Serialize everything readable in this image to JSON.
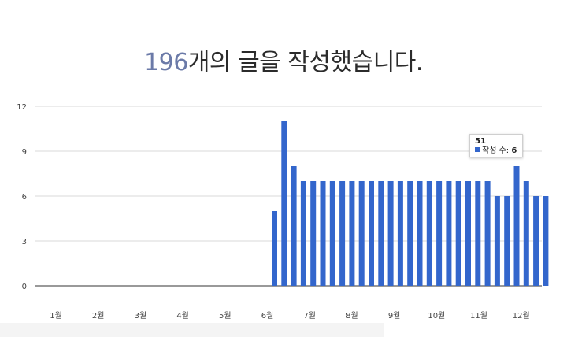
{
  "headline": {
    "count": "196",
    "text": "개의 글을 작성했습니다."
  },
  "tooltip": {
    "title": "51",
    "label": "작성 수:",
    "value": "6"
  },
  "colors": {
    "bar": "#3366cc",
    "grid": "#d9d9d9",
    "axis": "#333333",
    "count": "#6b7aa8"
  },
  "chart_data": {
    "type": "bar",
    "xlabel": "",
    "ylabel": "",
    "ylim": [
      0,
      12
    ],
    "yticks": [
      "0",
      "3",
      "6",
      "9",
      "12"
    ],
    "xticks": [
      "1월",
      "2월",
      "3월",
      "4월",
      "5월",
      "6월",
      "7월",
      "8월",
      "9월",
      "10월",
      "11월",
      "12월"
    ],
    "grid": true,
    "series": [
      {
        "values": [
          5,
          11,
          8,
          7,
          7,
          7,
          7,
          7,
          7,
          7,
          7,
          7,
          7,
          7,
          7,
          7,
          7,
          7,
          7,
          7,
          7,
          7,
          7,
          6,
          6,
          8,
          7,
          6,
          6
        ]
      }
    ]
  }
}
